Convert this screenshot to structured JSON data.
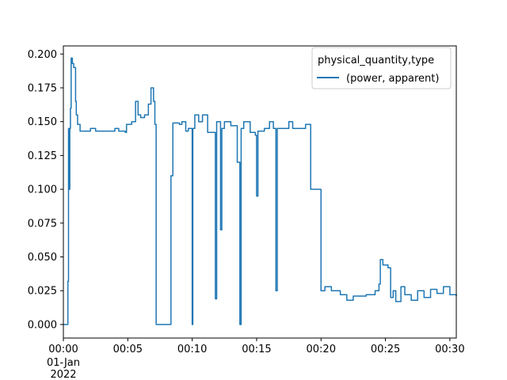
{
  "chart_data": {
    "type": "line",
    "xlim": [
      "00:00",
      "00:30:30"
    ],
    "ylim": [
      -0.01,
      0.206
    ],
    "x_ticks": [
      {
        "value": 0,
        "label": "00:00",
        "sublabels": [
          "01-Jan",
          "2022"
        ]
      },
      {
        "value": 5,
        "label": "00:05"
      },
      {
        "value": 10,
        "label": "00:10"
      },
      {
        "value": 15,
        "label": "00:15"
      },
      {
        "value": 20,
        "label": "00:20"
      },
      {
        "value": 25,
        "label": "00:25"
      },
      {
        "value": 30,
        "label": "00:30"
      }
    ],
    "y_ticks": [
      {
        "value": 0.0,
        "label": "0.000"
      },
      {
        "value": 0.025,
        "label": "0.025"
      },
      {
        "value": 0.05,
        "label": "0.050"
      },
      {
        "value": 0.075,
        "label": "0.075"
      },
      {
        "value": 0.1,
        "label": "0.100"
      },
      {
        "value": 0.125,
        "label": "0.125"
      },
      {
        "value": 0.15,
        "label": "0.150"
      },
      {
        "value": 0.175,
        "label": "0.175"
      },
      {
        "value": 0.2,
        "label": "0.200"
      }
    ],
    "grid": false,
    "legend": {
      "title": "physical_quantity,type",
      "placement": "top-right"
    },
    "series": [
      {
        "name": "(power, apparent)",
        "color": "#1f77b4",
        "step": true,
        "x_unit": "minutes after 00:00",
        "points": [
          [
            0,
            0.0
          ],
          [
            0.3,
            0.0
          ],
          [
            0.35,
            0.032
          ],
          [
            0.4,
            0.145
          ],
          [
            0.45,
            0.1
          ],
          [
            0.5,
            0.145
          ],
          [
            0.55,
            0.16
          ],
          [
            0.6,
            0.197
          ],
          [
            0.7,
            0.193
          ],
          [
            0.8,
            0.19
          ],
          [
            0.95,
            0.165
          ],
          [
            1.0,
            0.155
          ],
          [
            1.1,
            0.148
          ],
          [
            1.3,
            0.143
          ],
          [
            2.0,
            0.143
          ],
          [
            2.1,
            0.145
          ],
          [
            2.5,
            0.143
          ],
          [
            4.0,
            0.145
          ],
          [
            4.3,
            0.143
          ],
          [
            4.8,
            0.142
          ],
          [
            4.9,
            0.148
          ],
          [
            5.3,
            0.15
          ],
          [
            5.6,
            0.165
          ],
          [
            5.8,
            0.155
          ],
          [
            6.0,
            0.153
          ],
          [
            6.3,
            0.155
          ],
          [
            6.6,
            0.163
          ],
          [
            6.8,
            0.175
          ],
          [
            7.0,
            0.165
          ],
          [
            7.1,
            0.148
          ],
          [
            7.2,
            0.0
          ],
          [
            8.3,
            0.0
          ],
          [
            8.35,
            0.11
          ],
          [
            8.5,
            0.149
          ],
          [
            9.0,
            0.148
          ],
          [
            9.2,
            0.15
          ],
          [
            9.5,
            0.143
          ],
          [
            9.7,
            0.145
          ],
          [
            10.0,
            0.0
          ],
          [
            10.05,
            0.145
          ],
          [
            10.2,
            0.155
          ],
          [
            10.5,
            0.15
          ],
          [
            10.8,
            0.155
          ],
          [
            11.2,
            0.142
          ],
          [
            11.8,
            0.019
          ],
          [
            11.9,
            0.15
          ],
          [
            12.2,
            0.07
          ],
          [
            12.3,
            0.145
          ],
          [
            12.5,
            0.15
          ],
          [
            13.0,
            0.147
          ],
          [
            13.5,
            0.12
          ],
          [
            13.7,
            0.0
          ],
          [
            13.8,
            0.145
          ],
          [
            14.0,
            0.15
          ],
          [
            14.5,
            0.142
          ],
          [
            14.9,
            0.14
          ],
          [
            15.0,
            0.095
          ],
          [
            15.1,
            0.143
          ],
          [
            15.6,
            0.145
          ],
          [
            16.0,
            0.15
          ],
          [
            16.3,
            0.145
          ],
          [
            16.5,
            0.025
          ],
          [
            16.6,
            0.145
          ],
          [
            17.5,
            0.15
          ],
          [
            17.8,
            0.145
          ],
          [
            18.8,
            0.148
          ],
          [
            19.2,
            0.1
          ],
          [
            19.9,
            0.1
          ],
          [
            20.0,
            0.025
          ],
          [
            20.3,
            0.028
          ],
          [
            20.8,
            0.025
          ],
          [
            21.5,
            0.022
          ],
          [
            22.0,
            0.018
          ],
          [
            22.5,
            0.021
          ],
          [
            23.5,
            0.022
          ],
          [
            24.2,
            0.025
          ],
          [
            24.5,
            0.03
          ],
          [
            24.6,
            0.048
          ],
          [
            24.8,
            0.044
          ],
          [
            25.2,
            0.042
          ],
          [
            25.4,
            0.02
          ],
          [
            25.6,
            0.025
          ],
          [
            25.8,
            0.017
          ],
          [
            26.2,
            0.028
          ],
          [
            26.5,
            0.022
          ],
          [
            27.0,
            0.018
          ],
          [
            27.5,
            0.025
          ],
          [
            28.0,
            0.02
          ],
          [
            28.5,
            0.026
          ],
          [
            29.0,
            0.023
          ],
          [
            29.5,
            0.028
          ],
          [
            30.0,
            0.022
          ],
          [
            30.5,
            0.021
          ]
        ]
      }
    ]
  }
}
